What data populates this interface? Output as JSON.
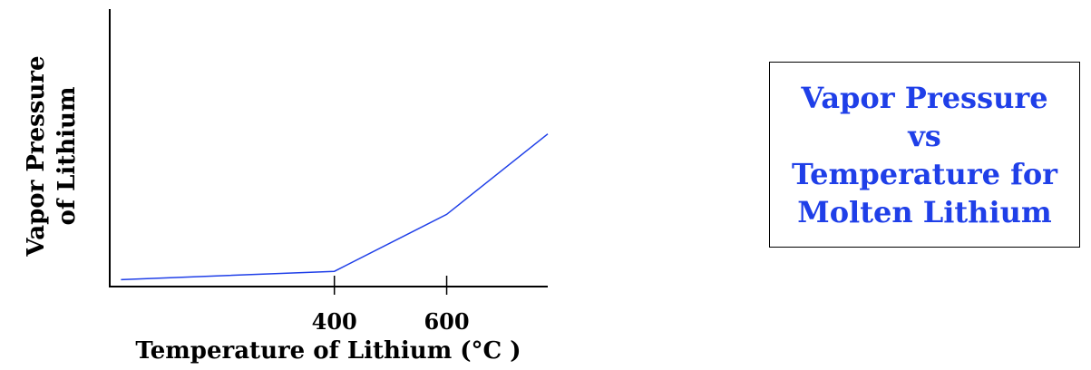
{
  "colors": {
    "series": "#1f3fe8",
    "title": "#1f3fe8",
    "axis": "#000000"
  },
  "title_box": {
    "lines": [
      "Vapor Pressure",
      "vs",
      "Temperature for",
      "Molten Lithium"
    ]
  },
  "chart_data": {
    "type": "line",
    "title": "Vapor Pressure vs Temperature for Molten Lithium",
    "xlabel": "Temperature of Lithium (°C )",
    "ylabel_lines": [
      "Vapor Pressure",
      "of Lithium"
    ],
    "x_ticks": [
      400,
      600
    ],
    "x_tick_labels": [
      "400",
      "600"
    ],
    "xlim": [
      0,
      780
    ],
    "ylim": [
      0,
      10
    ],
    "y_ticks": [],
    "grid": false,
    "legend": "none",
    "series": [
      {
        "x": [
          20,
          400,
          600,
          780
        ],
        "y": [
          0.25,
          0.55,
          2.6,
          5.5
        ]
      }
    ]
  }
}
